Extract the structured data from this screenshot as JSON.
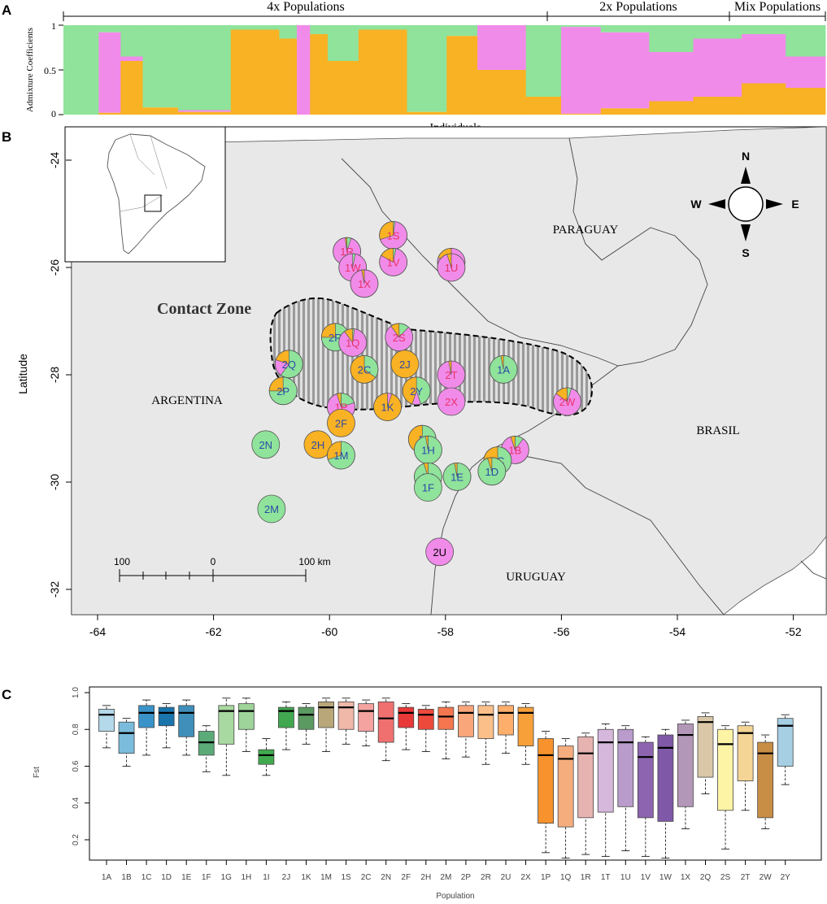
{
  "panels": {
    "a": "A",
    "b": "B",
    "c": "C"
  },
  "colors": {
    "green": "#8fe39a",
    "pink": "#f18be9",
    "orange": "#f9b223",
    "land": "#e8e8e8"
  },
  "chart_data": [
    {
      "type": "bar",
      "title": "",
      "xlabel": "Individuals",
      "ylabel": "Admixture Coefficients",
      "ylim": [
        0,
        1
      ],
      "yticks": [
        "0",
        "0.5",
        "1"
      ],
      "groups": [
        {
          "label": "4x Populations"
        },
        {
          "label": "2x Populations"
        },
        {
          "label": "Mix Populations"
        }
      ],
      "series": [
        {
          "name": "green",
          "color": "#8fe39a"
        },
        {
          "name": "pink",
          "color": "#f18be9"
        },
        {
          "name": "orange",
          "color": "#f9b223"
        }
      ],
      "segments": [
        {
          "n": 0.04,
          "g": 1.0,
          "p": 0.0
        },
        {
          "n": 0.025,
          "g": 0.08,
          "p": 0.9
        },
        {
          "n": 0.025,
          "g": 0.35,
          "p": 0.05
        },
        {
          "n": 0.04,
          "g": 0.92,
          "p": 0.0
        },
        {
          "n": 0.06,
          "g": 0.95,
          "p": 0.02
        },
        {
          "n": 0.055,
          "g": 0.05,
          "p": 0.0
        },
        {
          "n": 0.02,
          "g": 0.15,
          "p": 0.0
        },
        {
          "n": 0.015,
          "g": 0.0,
          "p": 1.0
        },
        {
          "n": 0.02,
          "g": 0.1,
          "p": 0.0
        },
        {
          "n": 0.035,
          "g": 0.4,
          "p": 0.0
        },
        {
          "n": 0.055,
          "g": 0.05,
          "p": 0.0
        },
        {
          "n": 0.045,
          "g": 0.97,
          "p": 0.0
        },
        {
          "n": 0.035,
          "g": 0.12,
          "p": 0.0
        },
        {
          "n": 0.055,
          "g": 0.0,
          "p": 0.5
        },
        {
          "n": 0.04,
          "g": 0.8,
          "p": 0.0
        },
        {
          "n": 0.045,
          "g": 0.02,
          "p": 0.97
        },
        {
          "n": 0.055,
          "g": 0.08,
          "p": 0.85
        },
        {
          "n": 0.05,
          "g": 0.3,
          "p": 0.55
        },
        {
          "n": 0.055,
          "g": 0.15,
          "p": 0.65
        },
        {
          "n": 0.05,
          "g": 0.1,
          "p": 0.55
        },
        {
          "n": 0.045,
          "g": 0.35,
          "p": 0.35
        }
      ]
    },
    {
      "type": "map",
      "xlabel": "",
      "ylabel": "Latitude",
      "xlim": [
        -64.5,
        -51.5
      ],
      "ylim": [
        -32.4,
        -23.6
      ],
      "xticks": [
        "-64",
        "-62",
        "-60",
        "-58",
        "-56",
        "-54",
        "-52"
      ],
      "yticks": [
        "-24",
        "-26",
        "-28",
        "-30",
        "-32"
      ],
      "countries": [
        "PARAGUAY",
        "ARGENTINA",
        "BRASIL",
        "URUGUAY"
      ],
      "contact_zone_label": "Contact Zone",
      "compass": [
        "N",
        "S",
        "E",
        "W"
      ],
      "scale": {
        "left": "100",
        "mid": "0",
        "right": "100 km"
      },
      "pies": [
        {
          "label": "1S",
          "lon": -58.9,
          "lat": -25.4,
          "g": 0.02,
          "p": 0.68,
          "o": 0.3
        },
        {
          "label": "1R",
          "lon": -59.7,
          "lat": -25.7,
          "g": 0.05,
          "p": 0.93,
          "o": 0.02
        },
        {
          "label": "1T",
          "lon": -57.9,
          "lat": -25.9,
          "g": 0.0,
          "p": 0.8,
          "o": 0.2
        },
        {
          "label": "1W",
          "lon": -59.6,
          "lat": -26.0,
          "g": 0.03,
          "p": 0.97,
          "o": 0.0
        },
        {
          "label": "1V",
          "lon": -58.9,
          "lat": -25.9,
          "g": 0.03,
          "p": 0.8,
          "o": 0.17
        },
        {
          "label": "1U",
          "lon": -57.9,
          "lat": -26.0,
          "g": 0.0,
          "p": 0.95,
          "o": 0.05
        },
        {
          "label": "1X",
          "lon": -59.4,
          "lat": -26.3,
          "g": 0.0,
          "p": 0.97,
          "o": 0.03
        },
        {
          "label": "2R",
          "lon": -59.9,
          "lat": -27.3,
          "g": 0.75,
          "p": 0.0,
          "o": 0.25
        },
        {
          "label": "1Q",
          "lon": -59.6,
          "lat": -27.4,
          "g": 0.02,
          "p": 0.88,
          "o": 0.1
        },
        {
          "label": "2S",
          "lon": -58.8,
          "lat": -27.3,
          "g": 0.12,
          "p": 0.78,
          "o": 0.1
        },
        {
          "label": "2Q",
          "lon": -60.7,
          "lat": -27.8,
          "g": 0.6,
          "p": 0.2,
          "o": 0.2
        },
        {
          "label": "2C",
          "lon": -59.4,
          "lat": -27.9,
          "g": 0.35,
          "p": 0.0,
          "o": 0.65
        },
        {
          "label": "2J",
          "lon": -58.7,
          "lat": -27.8,
          "g": 0.0,
          "p": 0.0,
          "o": 1.0
        },
        {
          "label": "2T",
          "lon": -57.9,
          "lat": -28.0,
          "g": 0.0,
          "p": 0.97,
          "o": 0.03
        },
        {
          "label": "1A",
          "lon": -57.0,
          "lat": -27.9,
          "g": 0.97,
          "p": 0.0,
          "o": 0.03
        },
        {
          "label": "2P",
          "lon": -60.8,
          "lat": -28.3,
          "g": 0.75,
          "p": 0.0,
          "o": 0.25
        },
        {
          "label": "2Y",
          "lon": -58.5,
          "lat": -28.3,
          "g": 0.45,
          "p": 0.1,
          "o": 0.45
        },
        {
          "label": "1P",
          "lon": -59.8,
          "lat": -28.6,
          "g": 0.2,
          "p": 0.75,
          "o": 0.05
        },
        {
          "label": "1K",
          "lon": -59.0,
          "lat": -28.6,
          "g": 0.0,
          "p": 0.05,
          "o": 0.95
        },
        {
          "label": "2X",
          "lon": -57.9,
          "lat": -28.5,
          "g": 0.0,
          "p": 1.0,
          "o": 0.0
        },
        {
          "label": "2W",
          "lon": -55.9,
          "lat": -28.5,
          "g": 0.05,
          "p": 0.8,
          "o": 0.15
        },
        {
          "label": "2F",
          "lon": -59.8,
          "lat": -28.9,
          "g": 0.0,
          "p": 0.0,
          "o": 1.0
        },
        {
          "label": "2N",
          "lon": -61.1,
          "lat": -29.3,
          "g": 1.0,
          "p": 0.0,
          "o": 0.0
        },
        {
          "label": "2H",
          "lon": -60.2,
          "lat": -29.3,
          "g": 0.0,
          "p": 0.0,
          "o": 1.0
        },
        {
          "label": "1M",
          "lon": -59.8,
          "lat": -29.5,
          "g": 0.7,
          "p": 0.0,
          "o": 0.3
        },
        {
          "label": "1I",
          "lon": -58.4,
          "lat": -29.2,
          "g": 0.45,
          "p": 0.0,
          "o": 0.55
        },
        {
          "label": "1H",
          "lon": -58.3,
          "lat": -29.4,
          "g": 0.97,
          "p": 0.0,
          "o": 0.03
        },
        {
          "label": "1B",
          "lon": -56.8,
          "lat": -29.4,
          "g": 0.1,
          "p": 0.85,
          "o": 0.05
        },
        {
          "label": "1C",
          "lon": -57.1,
          "lat": -29.6,
          "g": 0.6,
          "p": 0.0,
          "o": 0.4
        },
        {
          "label": "1G",
          "lon": -58.3,
          "lat": -29.9,
          "g": 0.95,
          "p": 0.0,
          "o": 0.05
        },
        {
          "label": "1E",
          "lon": -57.8,
          "lat": -29.9,
          "g": 0.97,
          "p": 0.0,
          "o": 0.03
        },
        {
          "label": "1D",
          "lon": -57.2,
          "lat": -29.8,
          "g": 0.95,
          "p": 0.0,
          "o": 0.05
        },
        {
          "label": "1F",
          "lon": -58.3,
          "lat": -30.1,
          "g": 1.0,
          "p": 0.0,
          "o": 0.0
        },
        {
          "label": "2M",
          "lon": -61.0,
          "lat": -30.5,
          "g": 1.0,
          "p": 0.0,
          "o": 0.0
        },
        {
          "label": "2U",
          "lon": -58.1,
          "lat": -31.3,
          "g": 0.0,
          "p": 1.0,
          "o": 0.0
        }
      ]
    },
    {
      "type": "box",
      "xlabel": "Population",
      "ylabel": "Fst",
      "ylim": [
        0.0,
        1.0
      ],
      "yticks": [
        "0.2",
        "0.4",
        "0.6",
        "0.8",
        "1.0"
      ],
      "categories": [
        "1A",
        "1B",
        "1C",
        "1D",
        "1E",
        "1F",
        "1G",
        "1H",
        "1I",
        "2J",
        "1K",
        "1M",
        "1S",
        "2C",
        "2N",
        "2F",
        "2H",
        "2M",
        "2P",
        "2R",
        "2U",
        "2X",
        "1P",
        "1Q",
        "1R",
        "1T",
        "1U",
        "1V",
        "1W",
        "1X",
        "2Q",
        "2S",
        "2T",
        "2W",
        "2Y"
      ],
      "boxes": [
        {
          "wlo": 0.7,
          "q1": 0.79,
          "med": 0.88,
          "q3": 0.91,
          "whi": 0.93,
          "color": "#b3d9ea"
        },
        {
          "wlo": 0.6,
          "q1": 0.67,
          "med": 0.78,
          "q3": 0.84,
          "whi": 0.86,
          "color": "#7bbcdc"
        },
        {
          "wlo": 0.66,
          "q1": 0.81,
          "med": 0.89,
          "q3": 0.93,
          "whi": 0.96,
          "color": "#3a93c8"
        },
        {
          "wlo": 0.7,
          "q1": 0.82,
          "med": 0.89,
          "q3": 0.92,
          "whi": 0.94,
          "color": "#1a75ad"
        },
        {
          "wlo": 0.66,
          "q1": 0.76,
          "med": 0.89,
          "q3": 0.93,
          "whi": 0.96,
          "color": "#3f8fba"
        },
        {
          "wlo": 0.57,
          "q1": 0.66,
          "med": 0.73,
          "q3": 0.79,
          "whi": 0.82,
          "color": "#5aab78"
        },
        {
          "wlo": 0.55,
          "q1": 0.72,
          "med": 0.9,
          "q3": 0.93,
          "whi": 0.97,
          "color": "#a8d9a0"
        },
        {
          "wlo": 0.68,
          "q1": 0.8,
          "med": 0.9,
          "q3": 0.94,
          "whi": 0.97,
          "color": "#9ed49a"
        },
        {
          "wlo": 0.55,
          "q1": 0.61,
          "med": 0.66,
          "q3": 0.69,
          "whi": 0.75,
          "color": "#40aa4e"
        },
        {
          "wlo": 0.69,
          "q1": 0.81,
          "med": 0.9,
          "q3": 0.92,
          "whi": 0.95,
          "color": "#42a850"
        },
        {
          "wlo": 0.72,
          "q1": 0.8,
          "med": 0.88,
          "q3": 0.92,
          "whi": 0.94,
          "color": "#5b9a61"
        },
        {
          "wlo": 0.68,
          "q1": 0.81,
          "med": 0.92,
          "q3": 0.95,
          "whi": 0.97,
          "color": "#b9a77a"
        },
        {
          "wlo": 0.72,
          "q1": 0.8,
          "med": 0.92,
          "q3": 0.95,
          "whi": 0.97,
          "color": "#f0b8a8"
        },
        {
          "wlo": 0.71,
          "q1": 0.79,
          "med": 0.9,
          "q3": 0.94,
          "whi": 0.96,
          "color": "#f4a3a0"
        },
        {
          "wlo": 0.63,
          "q1": 0.73,
          "med": 0.86,
          "q3": 0.95,
          "whi": 0.97,
          "color": "#f07070"
        },
        {
          "wlo": 0.69,
          "q1": 0.81,
          "med": 0.89,
          "q3": 0.92,
          "whi": 0.94,
          "color": "#e83838"
        },
        {
          "wlo": 0.68,
          "q1": 0.8,
          "med": 0.88,
          "q3": 0.91,
          "whi": 0.93,
          "color": "#ee4a3c"
        },
        {
          "wlo": 0.64,
          "q1": 0.8,
          "med": 0.87,
          "q3": 0.92,
          "whi": 0.95,
          "color": "#f4764f"
        },
        {
          "wlo": 0.65,
          "q1": 0.76,
          "med": 0.89,
          "q3": 0.93,
          "whi": 0.95,
          "color": "#f9a67a"
        },
        {
          "wlo": 0.61,
          "q1": 0.75,
          "med": 0.88,
          "q3": 0.93,
          "whi": 0.95,
          "color": "#fbc08a"
        },
        {
          "wlo": 0.67,
          "q1": 0.77,
          "med": 0.89,
          "q3": 0.93,
          "whi": 0.95,
          "color": "#fdae6b"
        },
        {
          "wlo": 0.61,
          "q1": 0.71,
          "med": 0.89,
          "q3": 0.92,
          "whi": 0.94,
          "color": "#f7a03a"
        },
        {
          "wlo": 0.13,
          "q1": 0.29,
          "med": 0.66,
          "q3": 0.75,
          "whi": 0.79,
          "color": "#f7922c"
        },
        {
          "wlo": 0.1,
          "q1": 0.27,
          "med": 0.64,
          "q3": 0.71,
          "whi": 0.75,
          "color": "#f5ad7e"
        },
        {
          "wlo": 0.12,
          "q1": 0.32,
          "med": 0.67,
          "q3": 0.76,
          "whi": 0.78,
          "color": "#e6b3b0"
        },
        {
          "wlo": 0.11,
          "q1": 0.35,
          "med": 0.73,
          "q3": 0.8,
          "whi": 0.83,
          "color": "#d5b8dc"
        },
        {
          "wlo": 0.14,
          "q1": 0.38,
          "med": 0.73,
          "q3": 0.8,
          "whi": 0.82,
          "color": "#b99ccb"
        },
        {
          "wlo": 0.11,
          "q1": 0.32,
          "med": 0.65,
          "q3": 0.73,
          "whi": 0.76,
          "color": "#8c64b0"
        },
        {
          "wlo": 0.1,
          "q1": 0.3,
          "med": 0.7,
          "q3": 0.77,
          "whi": 0.8,
          "color": "#7f58a8"
        },
        {
          "wlo": 0.26,
          "q1": 0.38,
          "med": 0.77,
          "q3": 0.83,
          "whi": 0.85,
          "color": "#b397b8"
        },
        {
          "wlo": 0.45,
          "q1": 0.54,
          "med": 0.84,
          "q3": 0.87,
          "whi": 0.89,
          "color": "#d9c7a8"
        },
        {
          "wlo": 0.15,
          "q1": 0.36,
          "med": 0.72,
          "q3": 0.8,
          "whi": 0.82,
          "color": "#fdf4a6"
        },
        {
          "wlo": 0.36,
          "q1": 0.52,
          "med": 0.78,
          "q3": 0.82,
          "whi": 0.84,
          "color": "#f4d595"
        },
        {
          "wlo": 0.26,
          "q1": 0.32,
          "med": 0.67,
          "q3": 0.73,
          "whi": 0.77,
          "color": "#c98e45"
        },
        {
          "wlo": 0.5,
          "q1": 0.6,
          "med": 0.82,
          "q3": 0.86,
          "whi": 0.88,
          "color": "#a6cfe3"
        }
      ]
    }
  ]
}
